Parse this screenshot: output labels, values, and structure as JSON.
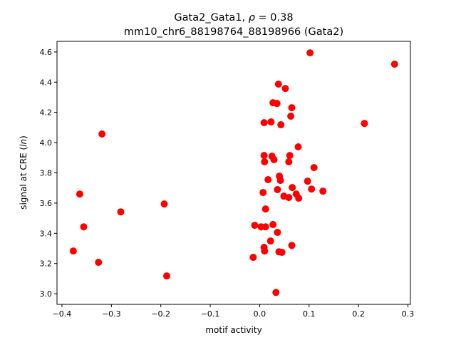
{
  "chart_data": {
    "type": "scatter",
    "title_line1_prefix": "Gata2_Gata1, ",
    "title_rho_symbol": "ρ",
    "title_rho_value": " = 0.38",
    "title_line2": "mm10_chr6_88198764_88198966 (Gata2)",
    "xlabel": "motif activity",
    "ylabel_prefix": "signal at CRE (",
    "ylabel_italic": "ln",
    "ylabel_suffix": ")",
    "xlim": [
      -0.41,
      0.305
    ],
    "ylim": [
      2.93,
      4.67
    ],
    "xticks": [
      -0.4,
      -0.3,
      -0.2,
      -0.1,
      0.0,
      0.1,
      0.2,
      0.3
    ],
    "xtick_labels": [
      "−0.4",
      "−0.3",
      "−0.2",
      "−0.1",
      "0.0",
      "0.1",
      "0.2",
      "0.3"
    ],
    "yticks": [
      3.0,
      3.2,
      3.4,
      3.6,
      3.8,
      4.0,
      4.2,
      4.4,
      4.6
    ],
    "ytick_labels": [
      "3.0",
      "3.2",
      "3.4",
      "3.6",
      "3.8",
      "4.0",
      "4.2",
      "4.4",
      "4.6"
    ],
    "grid": false,
    "marker_color": "#ff0000",
    "points": [
      [
        -0.377,
        3.283
      ],
      [
        -0.364,
        3.66
      ],
      [
        -0.356,
        3.443
      ],
      [
        -0.326,
        3.208
      ],
      [
        -0.319,
        4.057
      ],
      [
        -0.281,
        3.542
      ],
      [
        -0.193,
        3.594
      ],
      [
        -0.188,
        3.118
      ],
      [
        -0.013,
        3.241
      ],
      [
        -0.01,
        3.453
      ],
      [
        0.003,
        3.443
      ],
      [
        0.012,
        3.443
      ],
      [
        0.009,
        3.307
      ],
      [
        0.01,
        3.283
      ],
      [
        0.012,
        3.561
      ],
      [
        0.007,
        3.67
      ],
      [
        0.009,
        4.132
      ],
      [
        0.009,
        3.915
      ],
      [
        0.01,
        3.873
      ],
      [
        0.017,
        3.755
      ],
      [
        0.022,
        3.349
      ],
      [
        0.023,
        4.137
      ],
      [
        0.025,
        3.91
      ],
      [
        0.029,
        3.887
      ],
      [
        0.027,
        3.458
      ],
      [
        0.027,
        4.264
      ],
      [
        0.035,
        4.259
      ],
      [
        0.038,
        4.387
      ],
      [
        0.036,
        3.689
      ],
      [
        0.036,
        3.406
      ],
      [
        0.039,
        3.278
      ],
      [
        0.04,
        3.778
      ],
      [
        0.042,
        3.75
      ],
      [
        0.043,
        4.118
      ],
      [
        0.045,
        3.274
      ],
      [
        0.049,
        3.646
      ],
      [
        0.052,
        4.358
      ],
      [
        0.059,
        3.637
      ],
      [
        0.059,
        3.873
      ],
      [
        0.061,
        3.915
      ],
      [
        0.063,
        4.175
      ],
      [
        0.065,
        4.231
      ],
      [
        0.065,
        3.32
      ],
      [
        0.066,
        3.703
      ],
      [
        0.074,
        3.66
      ],
      [
        0.078,
        3.972
      ],
      [
        0.079,
        3.632
      ],
      [
        0.097,
        3.745
      ],
      [
        0.105,
        3.693
      ],
      [
        0.102,
        4.594
      ],
      [
        0.11,
        3.835
      ],
      [
        0.128,
        3.679
      ],
      [
        0.212,
        4.127
      ],
      [
        0.273,
        4.519
      ],
      [
        0.033,
        3.009
      ]
    ]
  }
}
